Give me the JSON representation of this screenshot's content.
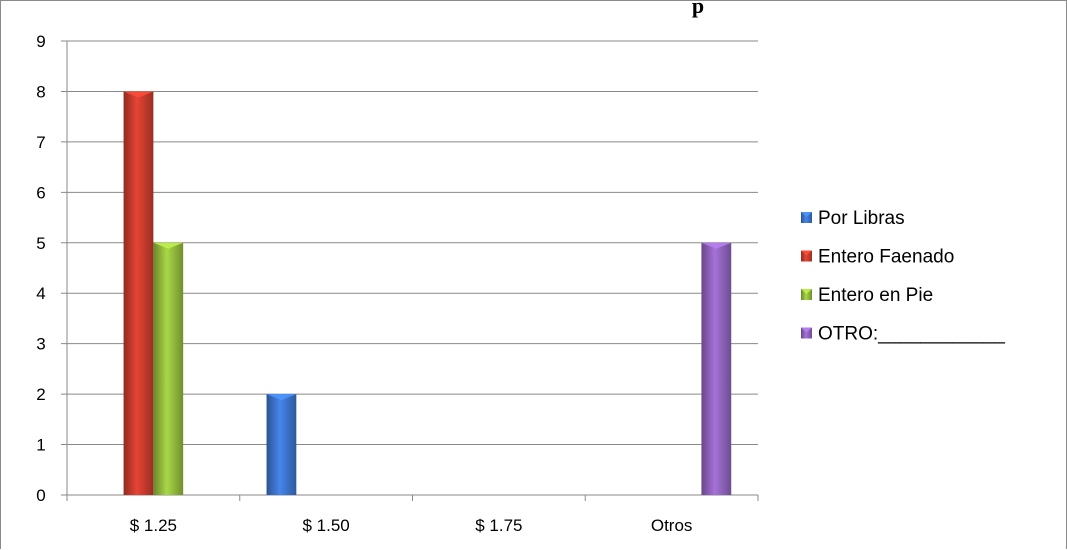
{
  "chart_data": {
    "type": "bar",
    "title": "p",
    "categories": [
      "$ 1.25",
      "$ 1.50",
      "$ 1.75",
      "Otros"
    ],
    "series": [
      {
        "name": "Por Libras",
        "values": [
          0,
          2,
          0,
          0
        ],
        "color": "#3a6fc4"
      },
      {
        "name": "Entero Faenado",
        "values": [
          8,
          0,
          0,
          0
        ],
        "color": "#c0392b"
      },
      {
        "name": "Entero en Pie",
        "values": [
          5,
          0,
          0,
          0
        ],
        "color": "#8db33a"
      },
      {
        "name": "OTRO:____________",
        "values": [
          0,
          0,
          0,
          5
        ],
        "color": "#8a5fb5"
      }
    ],
    "ylim": [
      0,
      9
    ],
    "yticks": [
      "0",
      "1",
      "2",
      "3",
      "4",
      "5",
      "6",
      "7",
      "8",
      "9"
    ],
    "grid": true,
    "legend_position": "right"
  }
}
